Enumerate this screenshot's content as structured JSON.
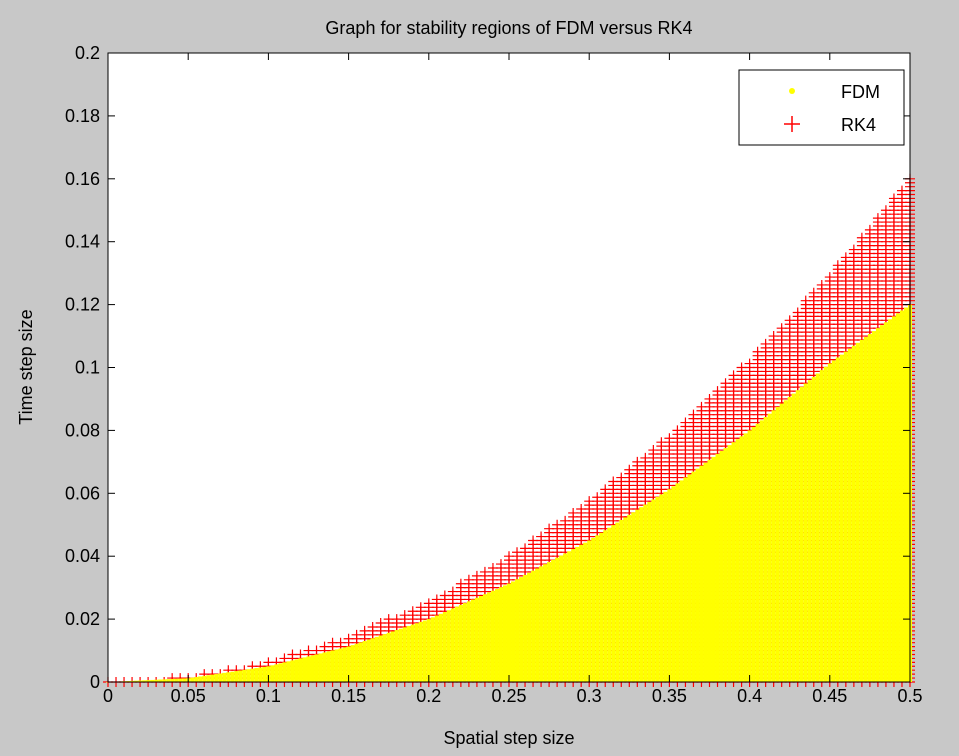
{
  "figure": {
    "background": "#c8c8c8"
  },
  "chart_data": {
    "type": "scatter",
    "title": "Graph for stability regions of FDM versus RK4",
    "xlabel": "Spatial step size",
    "ylabel": "Time step size",
    "xlim": [
      0,
      0.5
    ],
    "ylim": [
      0,
      0.2
    ],
    "xticks": [
      "0",
      "0.05",
      "0.1",
      "0.15",
      "0.2",
      "0.25",
      "0.3",
      "0.35",
      "0.4",
      "0.45",
      "0.5"
    ],
    "yticks": [
      "0",
      "0.02",
      "0.04",
      "0.06",
      "0.08",
      "0.1",
      "0.12",
      "0.14",
      "0.16",
      "0.18",
      "0.2"
    ],
    "grid": false,
    "legend_position": "top-right",
    "series": [
      {
        "name": "FDM",
        "marker": "dot",
        "color": "#ffff00",
        "x": [
          0.0,
          0.05,
          0.1,
          0.15,
          0.2,
          0.25,
          0.3,
          0.35,
          0.4,
          0.45,
          0.5
        ],
        "y_max": [
          0.0,
          0.0012,
          0.005,
          0.0113,
          0.02,
          0.0313,
          0.045,
          0.0613,
          0.08,
          0.1013,
          0.12
        ]
      },
      {
        "name": "RK4",
        "marker": "plus",
        "color": "#ff0000",
        "x": [
          0.0,
          0.05,
          0.1,
          0.15,
          0.2,
          0.25,
          0.3,
          0.35,
          0.4,
          0.45,
          0.5
        ],
        "y_max": [
          0.0,
          0.0016,
          0.0064,
          0.0144,
          0.0256,
          0.04,
          0.0576,
          0.0784,
          0.1024,
          0.1296,
          0.16
        ]
      }
    ]
  }
}
